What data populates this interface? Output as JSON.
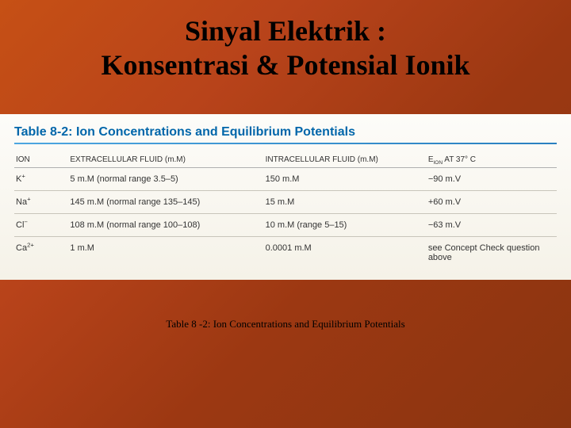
{
  "title_line1": "Sinyal Elektrik :",
  "title_line2": "Konsentrasi & Potensial Ionik",
  "table_title": "Table 8-2: Ion Concentrations and Equilibrium Potentials",
  "caption": "Table 8 -2: Ion Concentrations and Equilibrium Potentials",
  "headers": {
    "ion": "ION",
    "ecf": "EXTRACELLULAR FLUID (m.M)",
    "icf": "INTRACELLULAR FLUID (m.M)",
    "eion": "E",
    "eion_sub": "ION",
    "eion_suffix": " AT 37° C"
  },
  "rows": [
    {
      "ion": "K",
      "ion_sup": "+",
      "ecf": "5 m.M (normal range 3.5–5)",
      "icf": "150 m.M",
      "eion": "−90 m.V"
    },
    {
      "ion": "Na",
      "ion_sup": "+",
      "ecf": "145 m.M (normal range 135–145)",
      "icf": "15 m.M",
      "eion": "+60 m.V"
    },
    {
      "ion": "Cl",
      "ion_sup": "−",
      "ecf": "108 m.M (normal range 100–108)",
      "icf": "10 m.M (range 5–15)",
      "eion": "−63 m.V"
    },
    {
      "ion": "Ca",
      "ion_sup": "2+",
      "ecf": "1 m.M",
      "icf": "0.0001 m.M",
      "eion": "see Concept Check question above"
    }
  ],
  "colors": {
    "bg_gradient_start": "#c65015",
    "bg_gradient_end": "#8a3510",
    "title_text": "#000000",
    "table_bg_top": "#fdfcf9",
    "table_bg_bottom": "#f5f2e8",
    "table_title_color": "#0066aa",
    "hr_blue": "#2980c0",
    "row_border": "#c8c5ba"
  },
  "typography": {
    "title_font": "Times New Roman",
    "title_size_pt": 28,
    "table_font": "Arial",
    "table_size_pt": 9,
    "caption_size_pt": 10
  }
}
